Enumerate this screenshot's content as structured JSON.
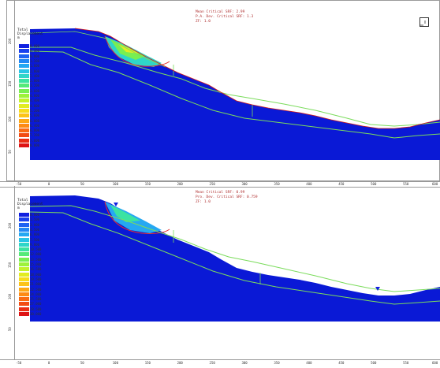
{
  "panels": [
    {
      "id": "top",
      "info_lines": [
        "Mean Critical SRF: 2.99",
        "P.A. Dev. Critical SRF: 1.3",
        "ZF: 1.0"
      ],
      "legend_title": "Total\nDisplacement\nm",
      "legend_values": [
        "0.000",
        "0.400",
        "0.800",
        "1.200",
        "1.600",
        "2.000",
        "2.400",
        "2.800",
        "3.200",
        "3.600",
        "4.000",
        "4.400",
        "4.800",
        "5.200",
        "5.600",
        "6.000",
        "6.400",
        "6.800",
        "7.200",
        "7.600",
        "8.000"
      ],
      "left_ticks": [
        "200",
        "150",
        "100",
        "50"
      ],
      "bottom_ticks": []
    },
    {
      "id": "bottom",
      "info_lines": [
        "Mean Critical SRF: 0.99",
        "Pro. Dev. Critical SRF: 0.759",
        "ZF: 1.0"
      ],
      "legend_title": "Total\nDisplacement\nm",
      "legend_values": [
        "0.000",
        "1.500",
        "3.000",
        "4.500",
        "6.000",
        "7.500",
        "9.000",
        "10.500",
        "12.000",
        "13.500",
        "15.000",
        "16.500",
        "18.000",
        "19.500",
        "21.000",
        "22.500",
        "24.000",
        "25.500",
        "27.000",
        "28.500",
        "30.000"
      ],
      "left_ticks": [
        "200",
        "150",
        "100",
        "50"
      ],
      "bottom_ticks": [
        "-50",
        "0",
        "50",
        "100",
        "150",
        "200",
        "250",
        "300",
        "350",
        "400",
        "450",
        "500",
        "550",
        "600"
      ]
    }
  ],
  "colors": {
    "ground": "#0a19d6",
    "layer_line": "#7bdc5c",
    "slip_circle": "#e23030",
    "outline": "#d61a1a",
    "scale": [
      "#1020e0",
      "#1a40ee",
      "#1f62f2",
      "#2387f4",
      "#25a8f2",
      "#29c4e6",
      "#2fd6c8",
      "#3be3a2",
      "#55ea78",
      "#78ef52",
      "#9df23a",
      "#c2f22c",
      "#e2ec22",
      "#f6dc1c",
      "#fcc318",
      "#fda815",
      "#fd8a13",
      "#f96a12",
      "#f24c12",
      "#e92e14",
      "#de1414"
    ]
  },
  "top_ruler_ticks": [
    "-50",
    "0",
    "50",
    "100",
    "150",
    "200",
    "250",
    "300",
    "350",
    "400",
    "450",
    "500",
    "550",
    "600"
  ],
  "icon": {
    "name": "support-arrows-icon"
  }
}
